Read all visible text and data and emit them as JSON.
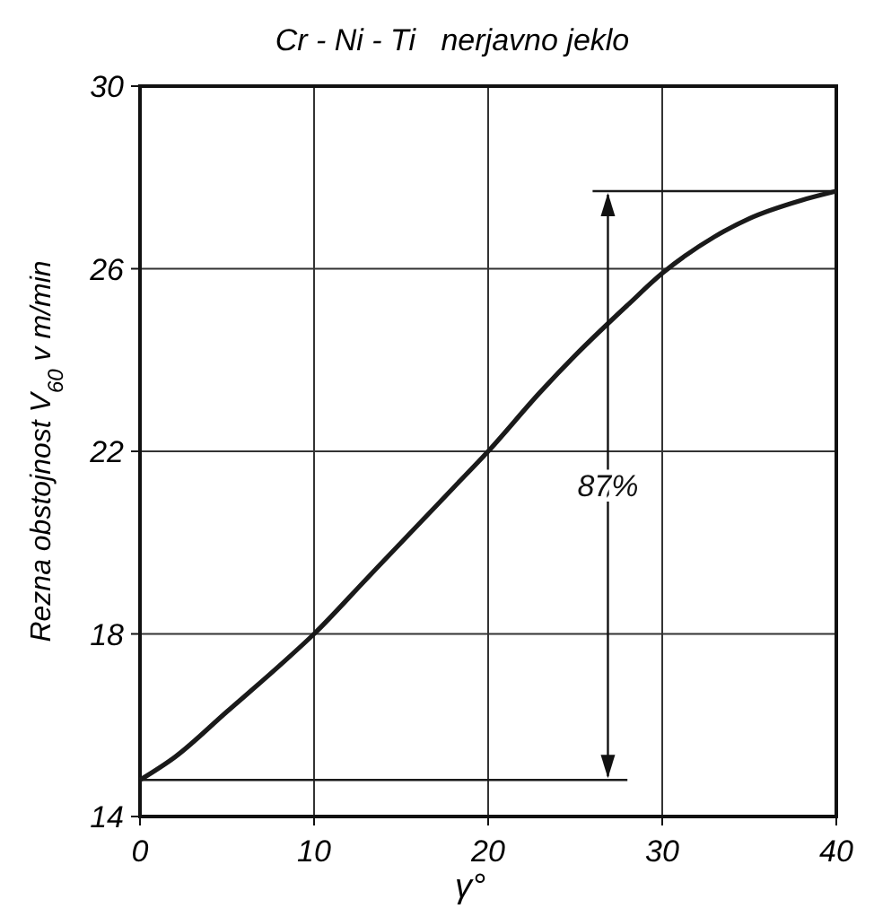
{
  "chart_data": {
    "type": "line",
    "title": "Cr - Ni - Ti   nerjavno jeklo",
    "xlabel": "γ°",
    "ylabel": "Rezna obstojnost V$_{60}$  v m/min",
    "x": [
      0,
      2,
      5,
      8,
      10,
      13,
      15,
      18,
      20,
      23,
      25,
      28,
      30,
      33,
      35,
      38,
      40
    ],
    "series": [
      {
        "color": "#1a1a1a",
        "values": [
          14.8,
          15.3,
          16.3,
          17.3,
          18,
          19.2,
          20,
          21.2,
          22,
          23.3,
          24.1,
          25.2,
          25.9,
          26.7,
          27.1,
          27.5,
          27.7
        ]
      }
    ],
    "xlim": [
      0,
      40
    ],
    "ylim": [
      14,
      30
    ],
    "xticks": [
      0,
      10,
      20,
      30,
      40
    ],
    "yticks": [
      14,
      18,
      22,
      26,
      30
    ],
    "grid": true,
    "marker": "none",
    "line_style": "solid",
    "ref_lines": [
      {
        "axis": "y",
        "value": 27.7,
        "color": "#1a1a1a"
      },
      {
        "axis": "y",
        "value": 14.8,
        "color": "#1a1a1a"
      }
    ],
    "annotations": [
      "87%"
    ]
  }
}
